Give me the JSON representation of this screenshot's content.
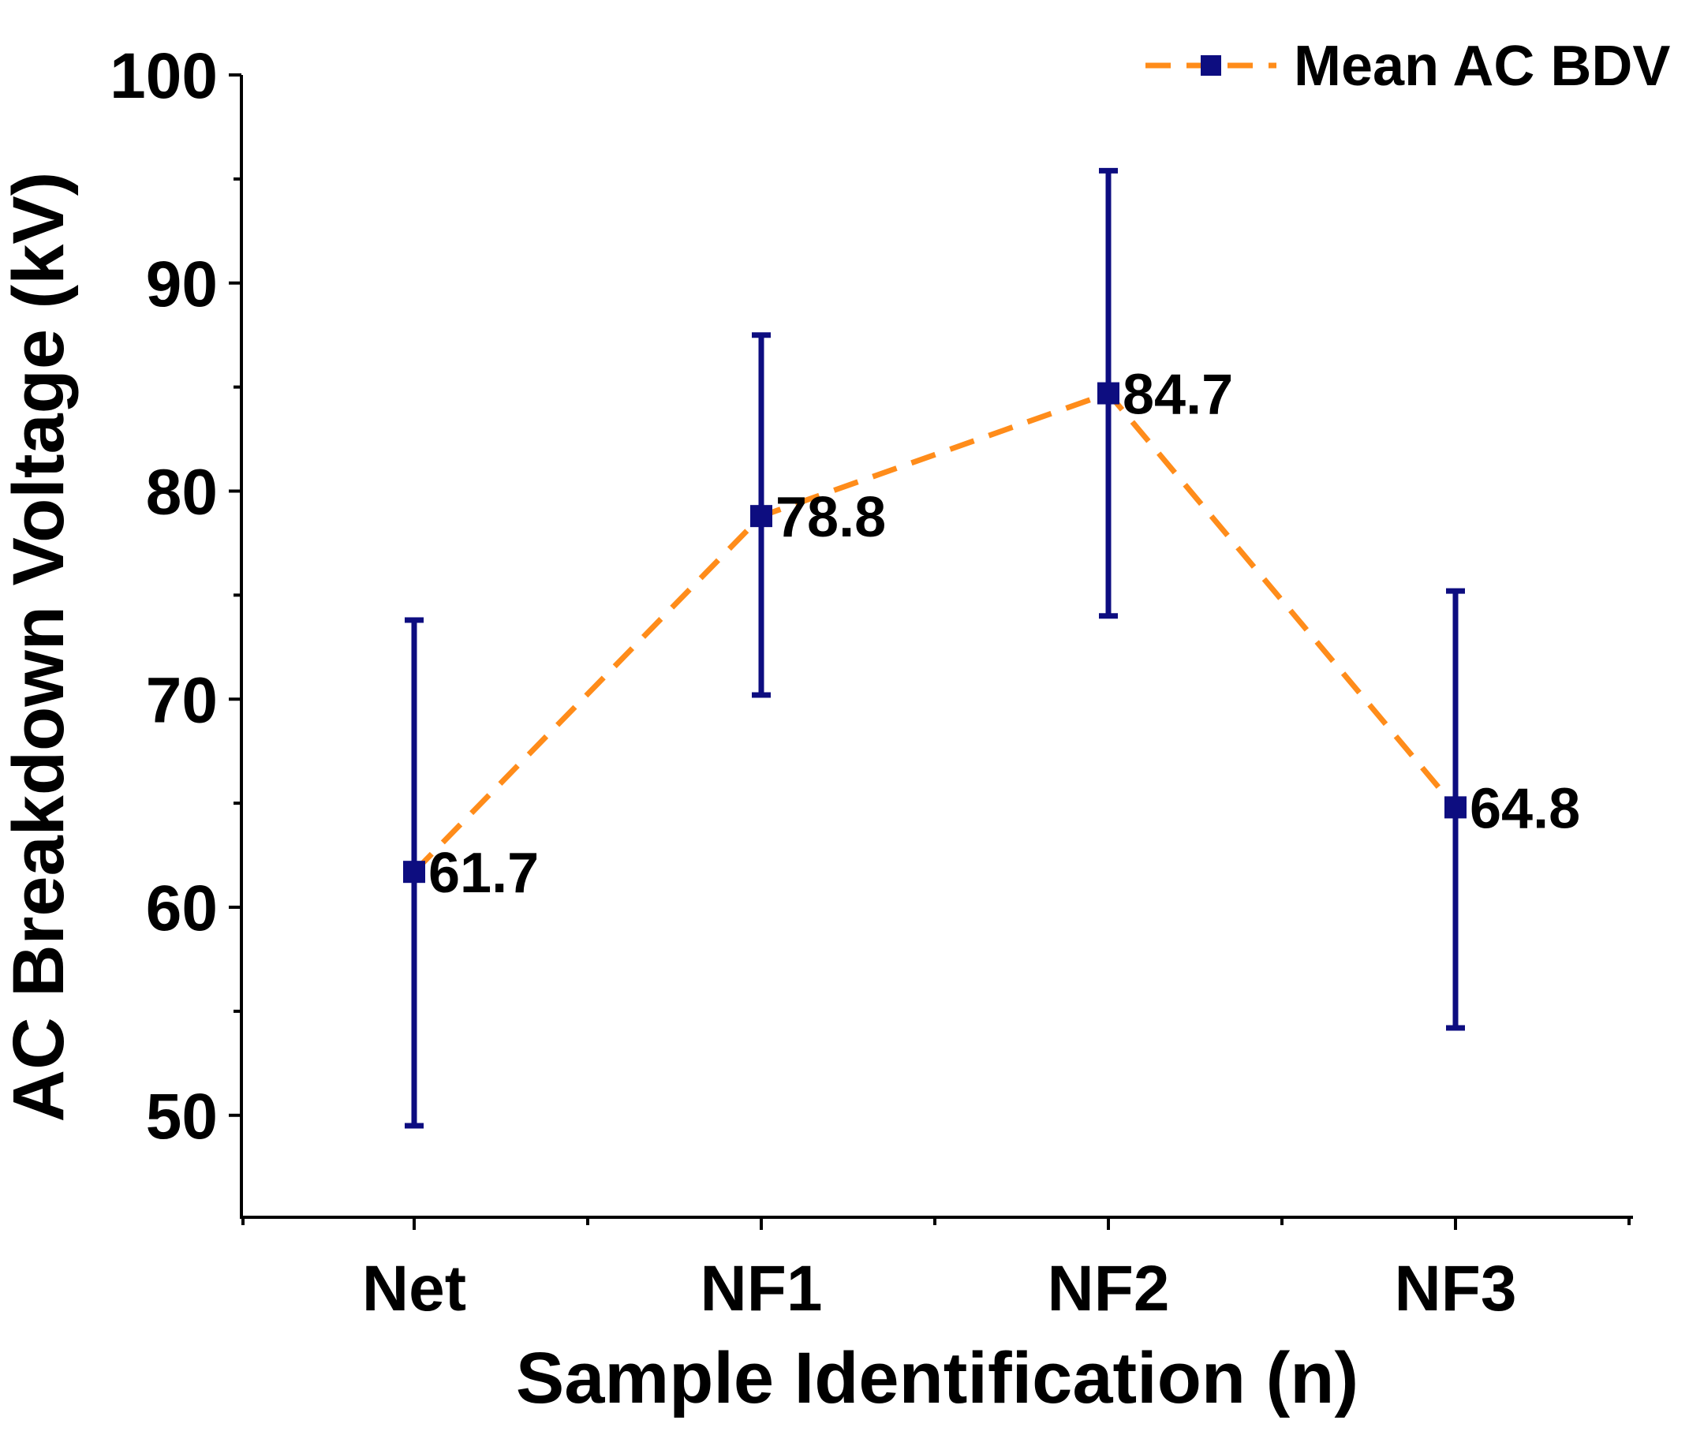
{
  "chart_data": {
    "type": "line",
    "title": "",
    "xlabel": "Sample Identification (n)",
    "ylabel": "AC Breakdown Voltage (kV)",
    "categories": [
      "Net",
      "NF1",
      "NF2",
      "NF3"
    ],
    "ylim": [
      45.1,
      100
    ],
    "yticks": [
      50,
      60,
      70,
      80,
      90,
      100
    ],
    "yticklabels": [
      "50",
      "60",
      "70",
      "80",
      "90",
      "100"
    ],
    "yminorticks": [
      55,
      65,
      75,
      85,
      95
    ],
    "grid": false,
    "legend_position": "top-right",
    "series": [
      {
        "name": "Mean AC BDV",
        "values": [
          61.7,
          78.8,
          84.7,
          64.8
        ],
        "error_low": [
          49.5,
          70.2,
          74.0,
          54.2
        ],
        "error_high": [
          73.8,
          87.5,
          95.4,
          75.2
        ],
        "data_labels": [
          "61.7",
          "78.8",
          "84.7",
          "64.8"
        ],
        "line_color": "#ff8c1a",
        "line_style": "dashed",
        "marker": "square",
        "marker_color": "#0d0d80",
        "errorbar_color": "#0d0d80"
      }
    ]
  }
}
